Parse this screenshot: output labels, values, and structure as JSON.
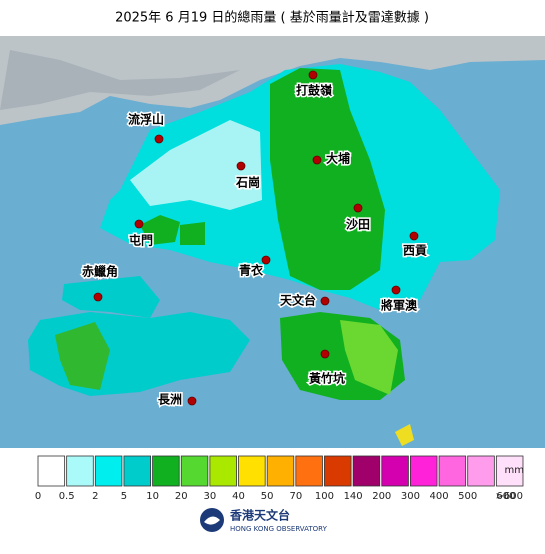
{
  "title": "2025年 6 月19 日的總雨量 ( 基於雨量計及雷達數據 )",
  "stations": [
    "打鼓嶺",
    "流浮山",
    "石崗",
    "大埔",
    "沙田",
    "屯門",
    "西貢",
    "青衣",
    "赤鱲角",
    "天文台",
    "將軍澳",
    "黃竹坑",
    "長洲"
  ],
  "legend": {
    "unit": "mm",
    "colors": [
      "#ffffff",
      "#aafafa",
      "#00eeee",
      "#00cccc",
      "#10b020",
      "#55d830",
      "#aae800",
      "#ffe000",
      "#ffb000",
      "#ff7010",
      "#d83a00",
      "#a0006a",
      "#d400b0",
      "#ff22d8",
      "#ff66e0",
      "#ff9cec",
      "#ffe0fa"
    ],
    "labels": [
      "0",
      "0.5",
      "2",
      "5",
      "10",
      "20",
      "30",
      "40",
      "50",
      "70",
      "100",
      "140",
      "200",
      "300",
      "400",
      "500",
      "600",
      ">600"
    ]
  },
  "logo": {
    "chinese": "香港天文台",
    "english": "HONG KONG OBSERVATORY"
  }
}
